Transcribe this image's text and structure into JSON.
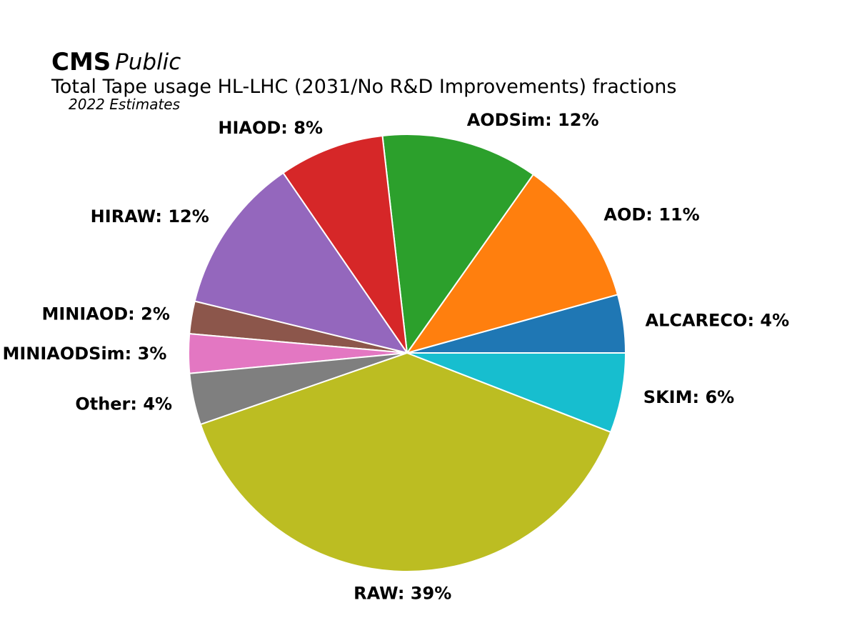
{
  "header": {
    "brand": "CMS",
    "brand_sub": "Public",
    "title": "Total Tape usage HL-LHC (2031/No R&D Improvements) fractions",
    "subtitle": "2022 Estimates"
  },
  "chart_data": {
    "type": "pie",
    "start_angle_deg": 0,
    "direction": "counterclockwise",
    "slice_edge_color": "#ffffff",
    "slices": [
      {
        "label": "ALCARECO",
        "value": 4.3,
        "text": "ALCARECO: 4%",
        "color": "#1f77b4"
      },
      {
        "label": "AOD",
        "value": 10.9,
        "text": "AOD: 11%",
        "color": "#ff7f0e"
      },
      {
        "label": "AODSim",
        "value": 11.6,
        "text": "AODSim: 12%",
        "color": "#2ca02c"
      },
      {
        "label": "HIAOD",
        "value": 7.8,
        "text": "HIAOD: 8%",
        "color": "#d62728"
      },
      {
        "label": "HIRAW",
        "value": 11.6,
        "text": "HIRAW: 12%",
        "color": "#9467bd"
      },
      {
        "label": "MINIAOD",
        "value": 2.4,
        "text": "MINIAOD: 2%",
        "color": "#8c564b"
      },
      {
        "label": "MINIAODSim",
        "value": 2.9,
        "text": "MINIAODSim: 3%",
        "color": "#e377c2"
      },
      {
        "label": "Other",
        "value": 3.8,
        "text": "Other: 4%",
        "color": "#7f7f7f"
      },
      {
        "label": "RAW",
        "value": 38.8,
        "text": "RAW: 39%",
        "color": "#bcbd22"
      },
      {
        "label": "SKIM",
        "value": 5.9,
        "text": "SKIM: 6%",
        "color": "#17becf"
      }
    ]
  }
}
